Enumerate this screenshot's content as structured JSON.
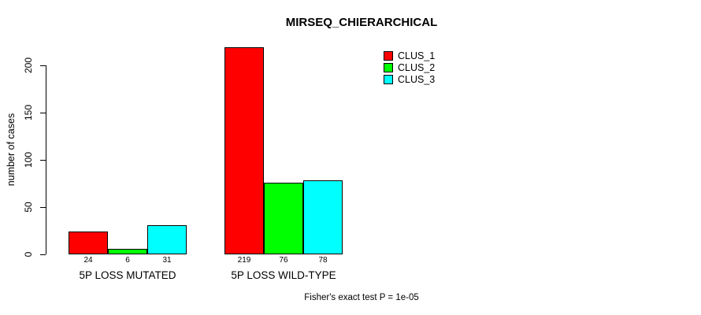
{
  "chart_data": {
    "type": "bar",
    "title": "MIRSEQ_CHIERARCHICAL",
    "xlabel": "",
    "ylabel": "number of cases",
    "categories": [
      "5P LOSS MUTATED",
      "5P LOSS WILD-TYPE"
    ],
    "series": [
      {
        "name": "CLUS_1",
        "color": "#ff0000",
        "values": [
          24,
          219
        ]
      },
      {
        "name": "CLUS_2",
        "color": "#00ff00",
        "values": [
          6,
          76
        ]
      },
      {
        "name": "CLUS_3",
        "color": "#00ffff",
        "values": [
          31,
          78
        ]
      }
    ],
    "bar_value_labels": [
      [
        24,
        6,
        31
      ],
      [
        219,
        76,
        78
      ]
    ],
    "yticks": [
      0,
      50,
      100,
      150,
      200
    ],
    "ylim": [
      0,
      220
    ],
    "grid": false,
    "legend_position": "top-right",
    "annotation": "Fisher's exact test P = 1e-05",
    "colors": {
      "background": "#ffffff",
      "axis": "#000000",
      "text": "#000000"
    }
  }
}
